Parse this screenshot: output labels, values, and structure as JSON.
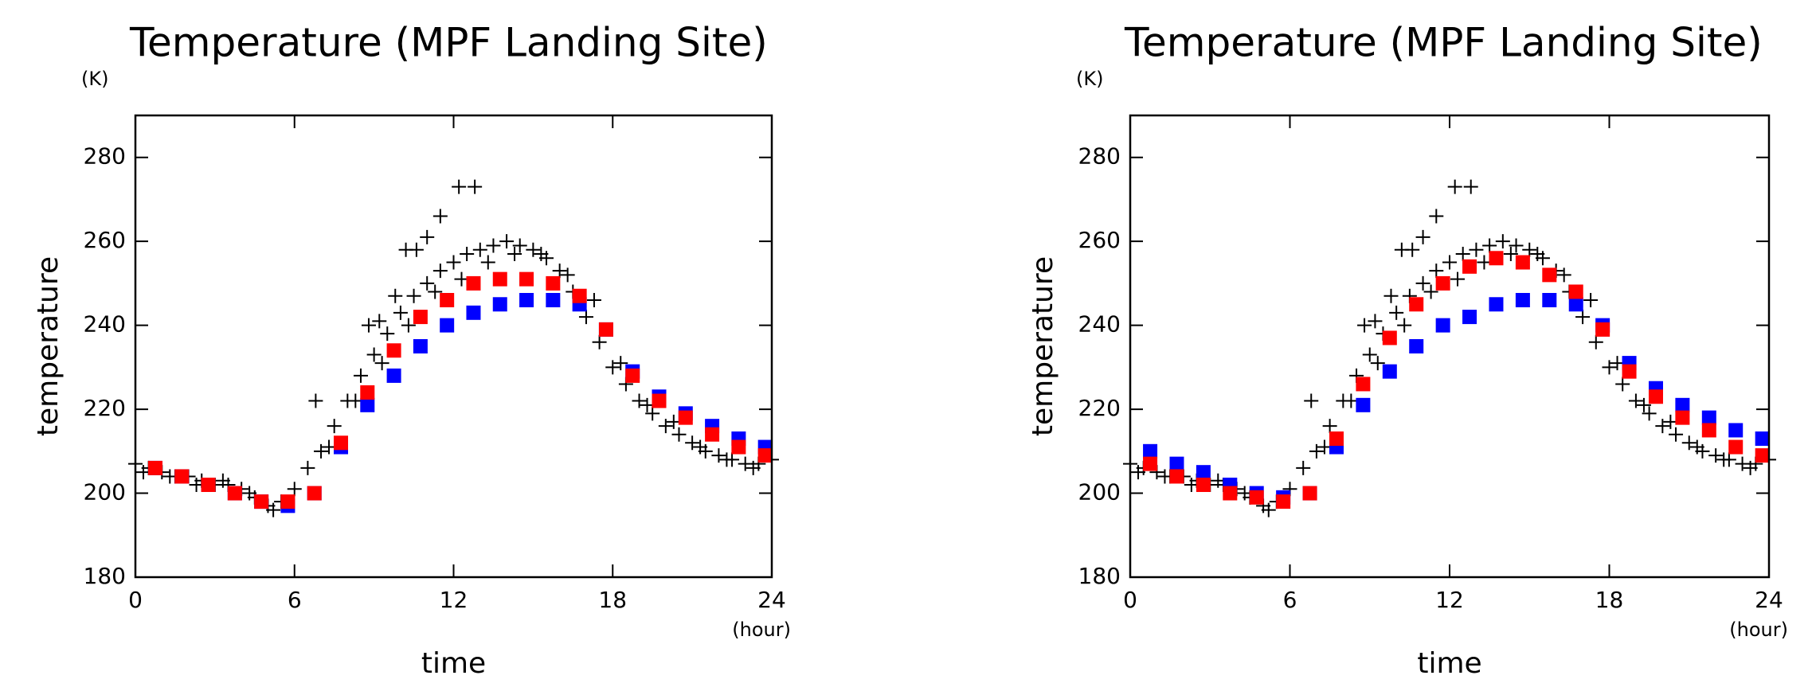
{
  "chart_data": [
    {
      "type": "scatter",
      "title": "Temperature (MPF Landing Site)",
      "y_unit": "(K)",
      "y_label": "temperature",
      "x_label": "time",
      "x_unit": "(hour)",
      "xlim": [
        0,
        24
      ],
      "xticks": [
        0,
        6,
        12,
        18,
        24
      ],
      "ylim": [
        180,
        290
      ],
      "yticks": [
        180,
        200,
        220,
        240,
        260,
        280
      ],
      "series": [
        {
          "color": "#000000",
          "marker": "plus",
          "x": [
            0,
            0.5,
            1,
            1.5,
            2,
            2.5,
            3,
            3.5,
            4,
            4.5,
            5,
            5.5,
            6,
            6.5,
            7,
            7.5,
            8,
            8.5,
            9,
            9.5,
            10,
            10.5,
            11,
            11.5,
            12,
            12.5,
            13,
            13.5,
            14,
            14.5,
            15,
            15.5,
            16,
            16.5,
            17,
            17.5,
            18,
            18.5,
            19,
            19.5,
            20,
            20.5,
            21,
            21.5,
            22,
            22.5,
            23,
            23.5,
            24,
            6.8,
            8.8,
            9.2,
            9.8,
            10.2,
            10.6,
            11,
            11.5,
            12.2,
            12.8,
            0.3,
            1.3,
            2.3,
            3.3,
            4.3,
            5.2,
            7.3,
            8.3,
            9.3,
            10.3,
            11.3,
            12.3,
            13.3,
            14.3,
            15.3,
            16.3,
            17.3,
            18.3,
            19.3,
            20.3,
            21.3,
            22.3,
            23.3
          ],
          "values": [
            207,
            206,
            205,
            204,
            204,
            203,
            202,
            202,
            201,
            199,
            197,
            198,
            201,
            206,
            210,
            216,
            222,
            228,
            233,
            238,
            243,
            247,
            250,
            253,
            255,
            257,
            258,
            259,
            260,
            259,
            258,
            256,
            253,
            248,
            242,
            236,
            230,
            226,
            222,
            219,
            216,
            214,
            212,
            210,
            209,
            208,
            207,
            207,
            208,
            222,
            240,
            241,
            247,
            258,
            258,
            261,
            266,
            273,
            273,
            205,
            204,
            202,
            203,
            200,
            196,
            211,
            222,
            231,
            240,
            248,
            251,
            255,
            257,
            257,
            252,
            246,
            231,
            221,
            217,
            211,
            208,
            206
          ]
        },
        {
          "color": "#0000ff",
          "marker": "square",
          "x": [
            0.75,
            1.75,
            2.75,
            3.75,
            4.75,
            5.75,
            6.75,
            7.75,
            8.75,
            9.75,
            10.75,
            11.75,
            12.75,
            13.75,
            14.75,
            15.75,
            16.75,
            17.75,
            18.75,
            19.75,
            20.75,
            21.75,
            22.75,
            23.75
          ],
          "values": [
            206,
            204,
            202,
            200,
            198,
            197,
            200,
            211,
            221,
            228,
            235,
            240,
            243,
            245,
            246,
            246,
            245,
            239,
            229,
            223,
            219,
            216,
            213,
            211
          ]
        },
        {
          "color": "#ff0000",
          "marker": "square",
          "x": [
            0.75,
            1.75,
            2.75,
            3.75,
            4.75,
            5.75,
            6.75,
            7.75,
            8.75,
            9.75,
            10.75,
            11.75,
            12.75,
            13.75,
            14.75,
            15.75,
            16.75,
            17.75,
            18.75,
            19.75,
            20.75,
            21.75,
            22.75,
            23.75
          ],
          "values": [
            206,
            204,
            202,
            200,
            198,
            198,
            200,
            212,
            224,
            234,
            242,
            246,
            250,
            251,
            251,
            250,
            247,
            239,
            228,
            222,
            218,
            214,
            211,
            209
          ]
        }
      ]
    },
    {
      "type": "scatter",
      "title": "Temperature (MPF Landing Site)",
      "y_unit": "(K)",
      "y_label": "temperature",
      "x_label": "time",
      "x_unit": "(hour)",
      "xlim": [
        0,
        24
      ],
      "xticks": [
        0,
        6,
        12,
        18,
        24
      ],
      "ylim": [
        180,
        290
      ],
      "yticks": [
        180,
        200,
        220,
        240,
        260,
        280
      ],
      "series": [
        {
          "color": "#000000",
          "marker": "plus",
          "x": [
            0,
            0.5,
            1,
            1.5,
            2,
            2.5,
            3,
            3.5,
            4,
            4.5,
            5,
            5.5,
            6,
            6.5,
            7,
            7.5,
            8,
            8.5,
            9,
            9.5,
            10,
            10.5,
            11,
            11.5,
            12,
            12.5,
            13,
            13.5,
            14,
            14.5,
            15,
            15.5,
            16,
            16.5,
            17,
            17.5,
            18,
            18.5,
            19,
            19.5,
            20,
            20.5,
            21,
            21.5,
            22,
            22.5,
            23,
            23.5,
            24,
            6.8,
            8.8,
            9.2,
            9.8,
            10.2,
            10.6,
            11,
            11.5,
            12.2,
            12.8,
            0.3,
            1.3,
            2.3,
            3.3,
            4.3,
            5.2,
            7.3,
            8.3,
            9.3,
            10.3,
            11.3,
            12.3,
            13.3,
            14.3,
            15.3,
            16.3,
            17.3,
            18.3,
            19.3,
            20.3,
            21.3,
            22.3,
            23.3
          ],
          "values": [
            207,
            206,
            205,
            204,
            204,
            203,
            202,
            202,
            201,
            199,
            197,
            198,
            201,
            206,
            210,
            216,
            222,
            228,
            233,
            238,
            243,
            247,
            250,
            253,
            255,
            257,
            258,
            259,
            260,
            259,
            258,
            256,
            253,
            248,
            242,
            236,
            230,
            226,
            222,
            219,
            216,
            214,
            212,
            210,
            209,
            208,
            207,
            207,
            208,
            222,
            240,
            241,
            247,
            258,
            258,
            261,
            266,
            273,
            273,
            205,
            204,
            202,
            203,
            200,
            196,
            211,
            222,
            231,
            240,
            248,
            251,
            255,
            257,
            257,
            252,
            246,
            231,
            221,
            217,
            211,
            208,
            206
          ]
        },
        {
          "color": "#0000ff",
          "marker": "square",
          "x": [
            0.75,
            1.75,
            2.75,
            3.75,
            4.75,
            5.75,
            6.75,
            7.75,
            8.75,
            9.75,
            10.75,
            11.75,
            12.75,
            13.75,
            14.75,
            15.75,
            16.75,
            17.75,
            18.75,
            19.75,
            20.75,
            21.75,
            22.75,
            23.75
          ],
          "values": [
            210,
            207,
            205,
            202,
            200,
            199,
            200,
            211,
            221,
            229,
            235,
            240,
            242,
            245,
            246,
            246,
            245,
            240,
            231,
            225,
            221,
            218,
            215,
            213
          ]
        },
        {
          "color": "#ff0000",
          "marker": "square",
          "x": [
            0.75,
            1.75,
            2.75,
            3.75,
            4.75,
            5.75,
            6.75,
            7.75,
            8.75,
            9.75,
            10.75,
            11.75,
            12.75,
            13.75,
            14.75,
            15.75,
            16.75,
            17.75,
            18.75,
            19.75,
            20.75,
            21.75,
            22.75,
            23.75
          ],
          "values": [
            207,
            204,
            202,
            200,
            199,
            198,
            200,
            213,
            226,
            237,
            245,
            250,
            254,
            256,
            255,
            252,
            248,
            239,
            229,
            223,
            218,
            215,
            211,
            209
          ]
        }
      ]
    }
  ]
}
